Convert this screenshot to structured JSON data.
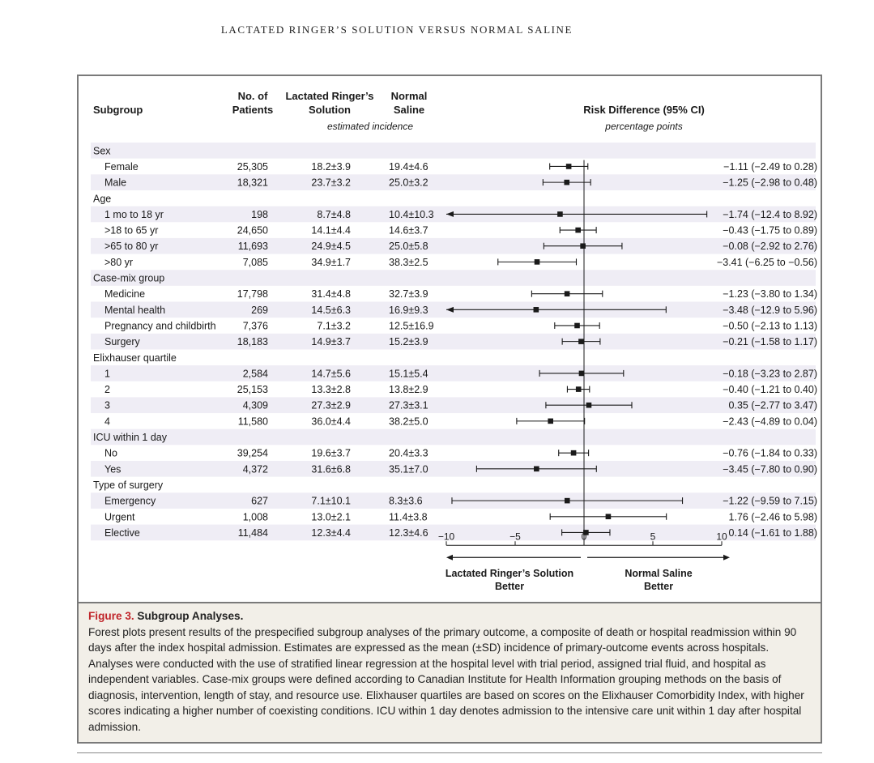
{
  "running_head": "LACTATED RINGER’S SOLUTION VERSUS NORMAL SALINE",
  "headers": {
    "subgroup": "Subgroup",
    "patients": [
      "No. of",
      "Patients"
    ],
    "lr": [
      "Lactated Ringer’s",
      "Solution"
    ],
    "ns": [
      "Normal",
      "Saline"
    ],
    "estimated": "estimated incidence",
    "rd": "Risk Difference (95% CI)",
    "rd_unit": "percentage points"
  },
  "rows": [
    {
      "kind": "group",
      "label": "Sex"
    },
    {
      "kind": "item",
      "label": "Female",
      "n": "25,305",
      "lr": "18.2±3.9",
      "ns": "19.4±4.6",
      "ci_text": "−1.11 (−2.49 to 0.28)",
      "est": -1.11,
      "lo": -2.49,
      "hi": 0.28
    },
    {
      "kind": "item",
      "label": "Male",
      "n": "18,321",
      "lr": "23.7±3.2",
      "ns": "25.0±3.2",
      "ci_text": "−1.25 (−2.98 to 0.48)",
      "est": -1.25,
      "lo": -2.98,
      "hi": 0.48
    },
    {
      "kind": "group",
      "label": "Age"
    },
    {
      "kind": "item",
      "label": "1 mo to 18 yr",
      "n": "198",
      "lr": "8.7±4.8",
      "ns": "10.4±10.3",
      "ci_text": "−1.74 (−12.4 to 8.92)",
      "est": -1.74,
      "lo": -12.4,
      "hi": 8.92
    },
    {
      "kind": "item",
      "label": ">18 to 65 yr",
      "n": "24,650",
      "lr": "14.1±4.4",
      "ns": "14.6±3.7",
      "ci_text": "−0.43 (−1.75 to 0.89)",
      "est": -0.43,
      "lo": -1.75,
      "hi": 0.89
    },
    {
      "kind": "item",
      "label": ">65 to 80 yr",
      "n": "11,693",
      "lr": "24.9±4.5",
      "ns": "25.0±5.8",
      "ci_text": "−0.08 (−2.92 to 2.76)",
      "est": -0.08,
      "lo": -2.92,
      "hi": 2.76
    },
    {
      "kind": "item",
      "label": ">80 yr",
      "n": "7,085",
      "lr": "34.9±1.7",
      "ns": "38.3±2.5",
      "ci_text": "−3.41 (−6.25 to −0.56)",
      "est": -3.41,
      "lo": -6.25,
      "hi": -0.56
    },
    {
      "kind": "group",
      "label": "Case-mix group"
    },
    {
      "kind": "item",
      "label": "Medicine",
      "n": "17,798",
      "lr": "31.4±4.8",
      "ns": "32.7±3.9",
      "ci_text": "−1.23 (−3.80 to 1.34)",
      "est": -1.23,
      "lo": -3.8,
      "hi": 1.34
    },
    {
      "kind": "item",
      "label": "Mental health",
      "n": "269",
      "lr": "14.5±6.3",
      "ns": "16.9±9.3",
      "ci_text": "−3.48 (−12.9 to 5.96)",
      "est": -3.48,
      "lo": -12.9,
      "hi": 5.96
    },
    {
      "kind": "item",
      "label": "Pregnancy and childbirth",
      "n": "7,376",
      "lr": "7.1±3.2",
      "ns": "12.5±16.9",
      "ci_text": "−0.50 (−2.13 to 1.13)",
      "est": -0.5,
      "lo": -2.13,
      "hi": 1.13
    },
    {
      "kind": "item",
      "label": "Surgery",
      "n": "18,183",
      "lr": "14.9±3.7",
      "ns": "15.2±3.9",
      "ci_text": "−0.21 (−1.58 to 1.17)",
      "est": -0.21,
      "lo": -1.58,
      "hi": 1.17
    },
    {
      "kind": "group",
      "label": "Elixhauser quartile"
    },
    {
      "kind": "item",
      "label": "1",
      "n": "2,584",
      "lr": "14.7±5.6",
      "ns": "15.1±5.4",
      "ci_text": "−0.18 (−3.23 to 2.87)",
      "est": -0.18,
      "lo": -3.23,
      "hi": 2.87
    },
    {
      "kind": "item",
      "label": "2",
      "n": "25,153",
      "lr": "13.3±2.8",
      "ns": "13.8±2.9",
      "ci_text": "−0.40 (−1.21 to 0.40)",
      "est": -0.4,
      "lo": -1.21,
      "hi": 0.4
    },
    {
      "kind": "item",
      "label": "3",
      "n": "4,309",
      "lr": "27.3±2.9",
      "ns": "27.3±3.1",
      "ci_text": "0.35 (−2.77 to 3.47)",
      "est": 0.35,
      "lo": -2.77,
      "hi": 3.47
    },
    {
      "kind": "item",
      "label": "4",
      "n": "11,580",
      "lr": "36.0±4.4",
      "ns": "38.2±5.0",
      "ci_text": "−2.43 (−4.89 to 0.04)",
      "est": -2.43,
      "lo": -4.89,
      "hi": 0.04
    },
    {
      "kind": "group",
      "label": "ICU within 1 day"
    },
    {
      "kind": "item",
      "label": "No",
      "n": "39,254",
      "lr": "19.6±3.7",
      "ns": "20.4±3.3",
      "ci_text": "−0.76 (−1.84 to 0.33)",
      "est": -0.76,
      "lo": -1.84,
      "hi": 0.33
    },
    {
      "kind": "item",
      "label": "Yes",
      "n": "4,372",
      "lr": "31.6±6.8",
      "ns": "35.1±7.0",
      "ci_text": "−3.45 (−7.80 to 0.90)",
      "est": -3.45,
      "lo": -7.8,
      "hi": 0.9
    },
    {
      "kind": "group",
      "label": "Type of surgery"
    },
    {
      "kind": "item",
      "label": "Emergency",
      "n": "627",
      "lr": "7.1±10.1",
      "ns": "8.3±3.6",
      "ci_text": "−1.22 (−9.59 to 7.15)",
      "est": -1.22,
      "lo": -9.59,
      "hi": 7.15
    },
    {
      "kind": "item",
      "label": "Urgent",
      "n": "1,008",
      "lr": "13.0±2.1",
      "ns": "11.4±3.8",
      "ci_text": "1.76 (−2.46 to 5.98)",
      "est": 1.76,
      "lo": -2.46,
      "hi": 5.98
    },
    {
      "kind": "item",
      "label": "Elective",
      "n": "11,484",
      "lr": "12.3±4.4",
      "ns": "12.3±4.6",
      "ci_text": "0.14 (−1.61 to 1.88)",
      "est": 0.14,
      "lo": -1.61,
      "hi": 1.88
    }
  ],
  "chart_data": {
    "type": "forest",
    "xlim": [
      -10,
      10
    ],
    "ticks": [
      -10,
      -5,
      0,
      5,
      10
    ],
    "tick_labels": [
      "−10",
      "−5",
      "0",
      "5",
      "10"
    ],
    "left_label": [
      "Lactated Ringer’s Solution",
      "Better"
    ],
    "right_label": [
      "Normal Saline",
      "Better"
    ],
    "marker_color": "#1a1a1a",
    "stripe_color": "#efedf5"
  },
  "caption": {
    "fig_label": "Figure 3.",
    "title": " Subgroup Analyses.",
    "body": "Forest plots present results of the prespecified subgroup analyses of the primary outcome, a composite of death or hospital readmission within 90 days after the index hospital admission. Estimates are expressed as the mean (±SD) incidence of primary-outcome events across hospitals. Analyses were conducted with the use of stratified linear regression at the hospital level with trial period, assigned trial fluid, and hospital as independent variables. Case-mix groups were defined according to Canadian Institute for Health Information grouping methods on the basis of diagnosis, intervention, length of stay, and resource use. Elixhauser quartiles are based on scores on the Elixhauser Comorbidity Index, with higher scores indicating a higher number of coexisting conditions. ICU within 1 day denotes admission to the intensive care unit within 1 day after hospital admission."
  }
}
